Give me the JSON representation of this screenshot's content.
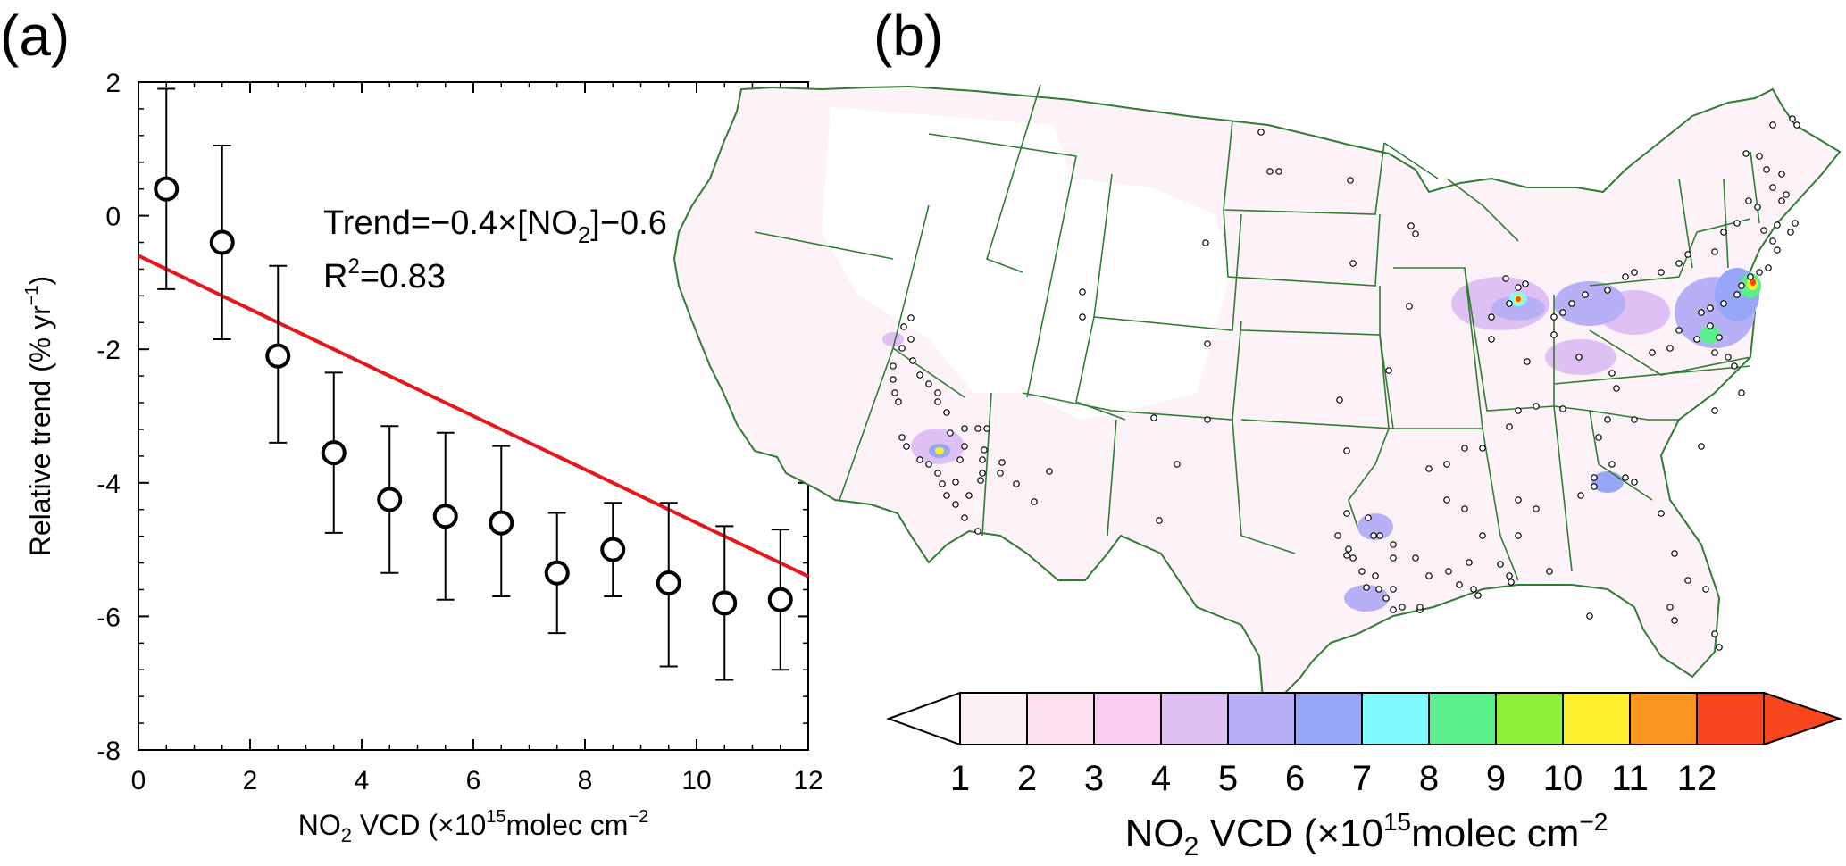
{
  "panel_a": {
    "label": "(a)",
    "equation": "Trend=−0.4×[NO",
    "equation_sub": "2",
    "equation_tail": "]−0.6",
    "r2_prefix": "R",
    "r2_sup": "2",
    "r2_tail": "=0.83",
    "xlabel_prefix": "NO",
    "xlabel_sub": "2",
    "xlabel_mid": " VCD (×10",
    "xlabel_sup": "15",
    "xlabel_tail": "molec cm",
    "xlabel_sup2": "−2",
    "ylabel_main": "Relative trend (%  yr",
    "ylabel_sup": "−1",
    "ylabel_tail": ")"
  },
  "panel_b": {
    "label": "(b)",
    "colorbar": {
      "ticks": [
        "1",
        "2",
        "3",
        "4",
        "5",
        "6",
        "7",
        "8",
        "9",
        "10",
        "11",
        "12"
      ],
      "colors": [
        "#fdf0f4",
        "#fce0ee",
        "#f9cdf2",
        "#dfc0f5",
        "#b8b0f6",
        "#98a6f8",
        "#7efbfc",
        "#5bf08e",
        "#8ff03a",
        "#fcef2a",
        "#fc9520",
        "#f9461c"
      ],
      "title_prefix": "NO",
      "title_sub": "2",
      "title_mid": " VCD (×10",
      "title_sup": "15",
      "title_tail": "molec cm",
      "title_sup2": "−2"
    },
    "map_colors": {
      "border": "#2e7d32",
      "fill": "#ffffff"
    }
  },
  "chart_data": [
    {
      "type": "scatter",
      "x": [
        0.5,
        1.5,
        2.5,
        3.5,
        4.5,
        5.5,
        6.5,
        7.5,
        8.5,
        9.5,
        10.5,
        11.5
      ],
      "y": [
        0.4,
        -0.4,
        -2.1,
        -3.55,
        -4.25,
        -4.5,
        -4.6,
        -5.35,
        -5.0,
        -5.5,
        -5.8,
        -5.75
      ],
      "err_low": [
        -1.1,
        -1.85,
        -3.4,
        -4.75,
        -5.35,
        -5.75,
        -5.7,
        -6.25,
        -5.7,
        -6.75,
        -6.95,
        -6.8
      ],
      "err_high": [
        1.9,
        1.05,
        -0.75,
        -2.35,
        -3.15,
        -3.25,
        -3.45,
        -4.45,
        -4.3,
        -4.3,
        -4.65,
        -4.7
      ],
      "fit": {
        "slope": -0.4,
        "intercept": -0.6,
        "x_range": [
          0,
          12
        ],
        "color": "#e8161b"
      },
      "xlim": [
        0,
        12
      ],
      "ylim": [
        -8,
        2
      ],
      "xticks": [
        0,
        2,
        4,
        6,
        8,
        10,
        12
      ],
      "yticks": [
        2,
        0,
        -2,
        -4,
        -6,
        -8
      ],
      "marker": "open-circle",
      "grid": false
    }
  ]
}
